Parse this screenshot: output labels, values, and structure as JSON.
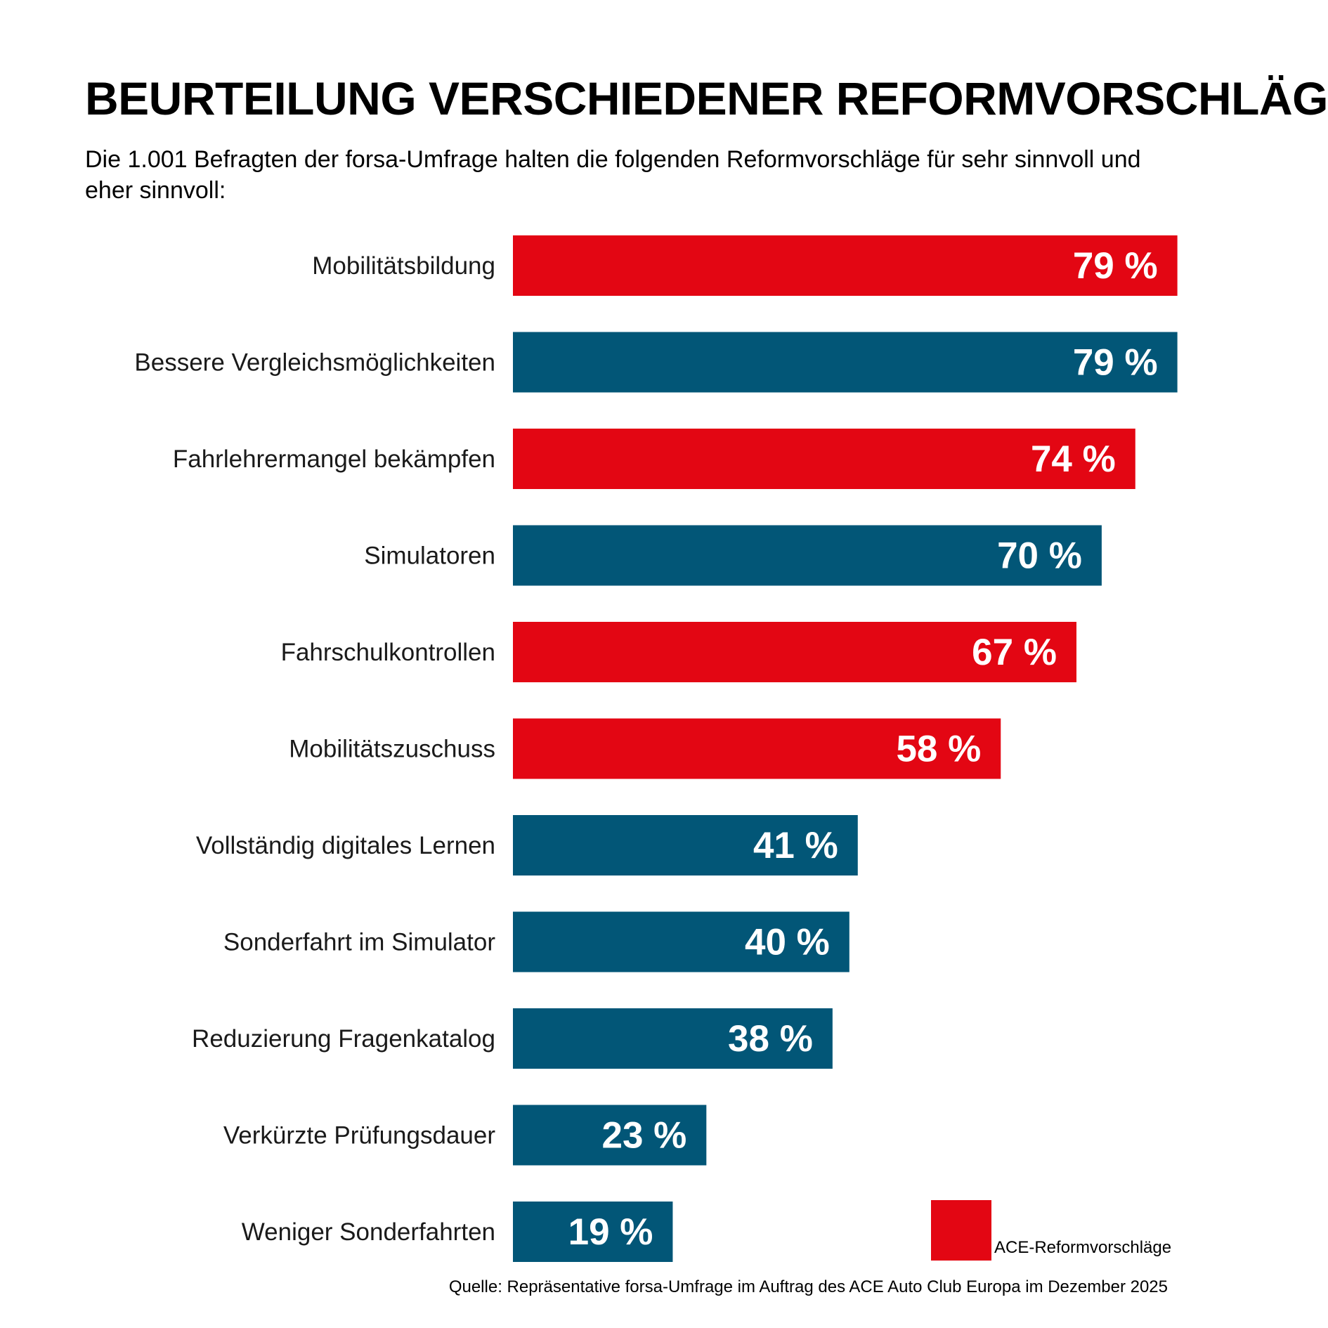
{
  "chart_data": {
    "type": "bar",
    "orientation": "horizontal",
    "title": "BEURTEILUNG VERSCHIEDENER REFORMVORSCHLÄGE",
    "subtitle": "Die 1.001 Befragten der forsa-Umfrage halten die folgenden Reformvorschläge für sehr sinnvoll und eher sinnvoll:",
    "categories": [
      "Mobilitätsbildung",
      "Bessere Vergleichsmöglichkeiten",
      "Fahrlehrermangel bekämpfen",
      "Simulatoren",
      "Fahrschulkontrollen",
      "Mobilitätszuschuss",
      "Vollständig digitales Lernen",
      "Sonderfahrt im Simulator",
      "Reduzierung Fragenkatalog",
      "Verkürzte Prüfungsdauer",
      "Weniger Sonderfahrten"
    ],
    "values": [
      79,
      79,
      74,
      70,
      67,
      58,
      41,
      40,
      38,
      23,
      19
    ],
    "value_labels": [
      "79 %",
      "79 %",
      "74 %",
      "70 %",
      "67 %",
      "58 %",
      "41 %",
      "40 %",
      "38 %",
      "23 %",
      "19 %"
    ],
    "ace_proposal": [
      true,
      false,
      true,
      false,
      true,
      true,
      false,
      false,
      false,
      false,
      false
    ],
    "unit": "%",
    "xlim": [
      0,
      100
    ],
    "grid": false,
    "legend": {
      "position": "bottom-right",
      "entries": [
        {
          "label": "ACE-Reformvorschläge",
          "color": "#e30613"
        }
      ]
    },
    "source": "Quelle: Repräsentative forsa-Umfrage im Auftrag des ACE Auto Club Europa im Dezember 2025"
  },
  "colors": {
    "ace": "#e30613",
    "other": "#025677"
  }
}
